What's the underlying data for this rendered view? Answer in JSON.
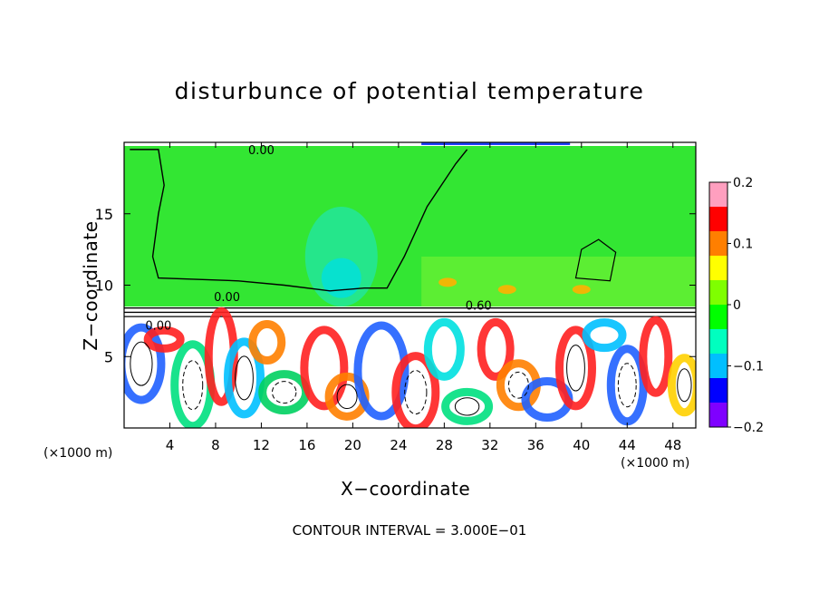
{
  "title": "disturbunce of potential temperature",
  "xlabel": "X−coordinate",
  "ylabel": "Z−coordinate",
  "x_unit_left": "(×1000 m)",
  "x_unit_right": "(×1000 m)",
  "footer": "CONTOUR INTERVAL = 3.000E−01",
  "chart_data": {
    "type": "heatmap",
    "title": "disturbunce of potential temperature",
    "xlabel": "X−coordinate",
    "ylabel": "Z−coordinate",
    "xlim": [
      0,
      50
    ],
    "ylim": [
      0,
      20
    ],
    "xticks": [
      4,
      8,
      12,
      16,
      20,
      24,
      28,
      32,
      36,
      40,
      44,
      48
    ],
    "yticks": [
      5,
      10,
      15
    ],
    "colorbar": {
      "ticks": [
        0.2,
        0.1,
        0,
        -0.1,
        -0.2
      ],
      "tick_labels": [
        "0.2",
        "0.1",
        "0",
        "−0.1",
        "−0.2"
      ],
      "range": [
        -0.2,
        0.2
      ],
      "colors": [
        "#ff9fbf",
        "#ff0000",
        "#ff7f00",
        "#ffff00",
        "#7fff00",
        "#00ff00",
        "#00ffbf",
        "#00bfff",
        "#0000ff",
        "#7f00ff"
      ]
    },
    "contour_labels": [
      "0.00",
      "0.00",
      "0.60",
      "0.00"
    ],
    "contour_interval": "3.000E−01",
    "colors": {
      "upper_layer": "#33e633",
      "band_fill": "#ffffff",
      "warm": "#ff2020",
      "cool": "#2060ff"
    }
  }
}
